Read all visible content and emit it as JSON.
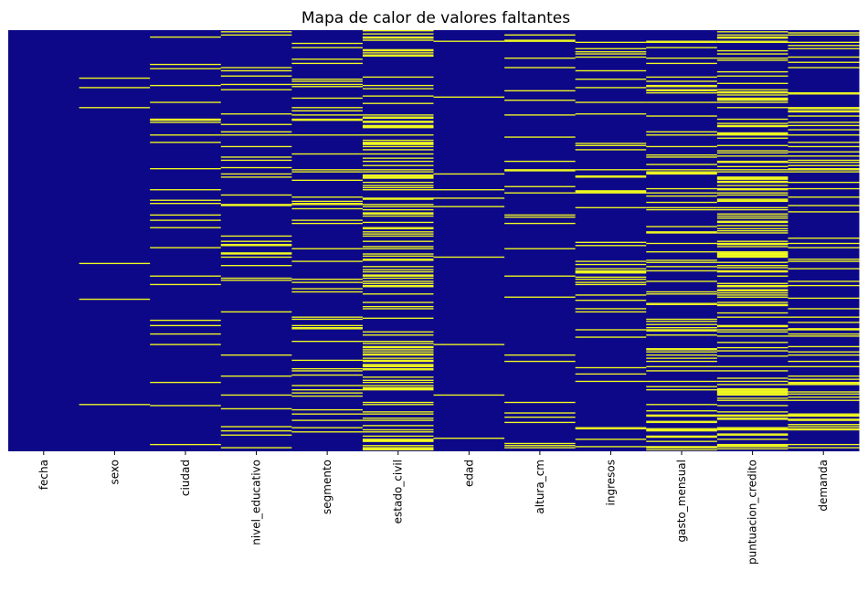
{
  "chart_data": {
    "type": "heatmap",
    "title": "Mapa de calor de valores faltantes",
    "xlabel": "",
    "ylabel": "",
    "grid": false,
    "legend": "none",
    "colors": {
      "present": "#0d0887",
      "missing": "#f0f921"
    },
    "categories": [
      "fecha",
      "sexo",
      "ciudad",
      "nivel_educativo",
      "segmento",
      "estado_civil",
      "edad",
      "altura_cm",
      "ingresos",
      "gasto_mensual",
      "puntuacion_credito",
      "demanda"
    ],
    "missing_fraction": [
      0.0,
      0.02,
      0.05,
      0.08,
      0.15,
      0.3,
      0.03,
      0.08,
      0.1,
      0.2,
      0.35,
      0.2
    ],
    "row_count": 400
  }
}
